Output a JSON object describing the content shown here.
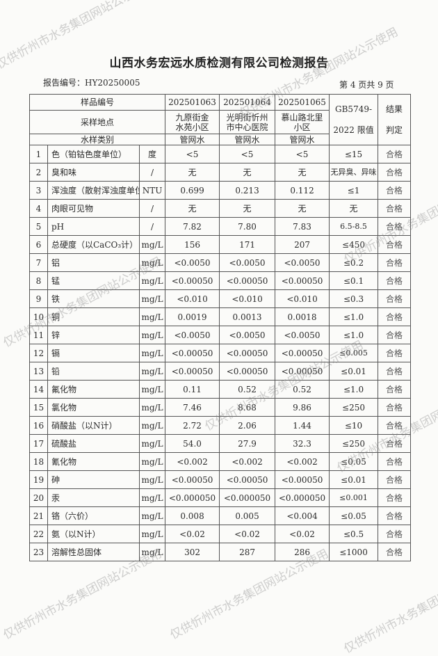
{
  "title": "山西水务宏远水质检测有限公司检测报告",
  "report_number": "报告编号：HY20250005",
  "page_number": "第 4 页共 9 页",
  "watermark": "仅供忻州市水务集团网站公示使用",
  "header": {
    "sample_no_label": "样品编号",
    "location_label": "采样地点",
    "type_label": "水样类别",
    "limit_label": "GB5749-2022 限值",
    "result_label": "结果判定",
    "samples": [
      {
        "no": "202501063",
        "location": "九原街金水苑小区",
        "type": "管网水"
      },
      {
        "no": "202501064",
        "location": "光明街忻州市中心医院",
        "type": "管网水"
      },
      {
        "no": "202501065",
        "location": "慕山路北里小区",
        "type": "管网水"
      }
    ]
  },
  "rows": [
    {
      "n": "1",
      "item": "色（铂钴色度单位）",
      "unit": "度",
      "v": [
        "<5",
        "<5",
        "<5"
      ],
      "limit": "≤15",
      "result": "合格"
    },
    {
      "n": "2",
      "item": "臭和味",
      "unit": "/",
      "v": [
        "无",
        "无",
        "无"
      ],
      "limit": "无异臭、异味",
      "result": "合格"
    },
    {
      "n": "3",
      "item": "浑浊度（散射浑浊度单位）",
      "unit": "NTU",
      "v": [
        "0.699",
        "0.213",
        "0.112"
      ],
      "limit": "≤1",
      "result": "合格"
    },
    {
      "n": "4",
      "item": "肉眼可见物",
      "unit": "/",
      "v": [
        "无",
        "无",
        "无"
      ],
      "limit": "无",
      "result": "合格"
    },
    {
      "n": "5",
      "item": "pH",
      "unit": "/",
      "v": [
        "7.82",
        "7.80",
        "7.83"
      ],
      "limit": "6.5-8.5",
      "result": "合格"
    },
    {
      "n": "6",
      "item": "总硬度（以CaCO₃计）",
      "unit": "mg/L",
      "v": [
        "156",
        "171",
        "207"
      ],
      "limit": "≤450",
      "result": "合格"
    },
    {
      "n": "7",
      "item": "铝",
      "unit": "mg/L",
      "v": [
        "<0.0050",
        "<0.0050",
        "<0.0050"
      ],
      "limit": "≤0.2",
      "result": "合格"
    },
    {
      "n": "8",
      "item": "锰",
      "unit": "mg/L",
      "v": [
        "<0.00050",
        "<0.00050",
        "<0.00050"
      ],
      "limit": "≤0.1",
      "result": "合格"
    },
    {
      "n": "9",
      "item": "铁",
      "unit": "mg/L",
      "v": [
        "<0.010",
        "<0.010",
        "<0.010"
      ],
      "limit": "≤0.3",
      "result": "合格"
    },
    {
      "n": "10",
      "item": "铜",
      "unit": "mg/L",
      "v": [
        "0.0019",
        "0.0013",
        "0.0018"
      ],
      "limit": "≤1.0",
      "result": "合格"
    },
    {
      "n": "11",
      "item": "锌",
      "unit": "mg/L",
      "v": [
        "<0.0050",
        "<0.0050",
        "<0.0050"
      ],
      "limit": "≤1.0",
      "result": "合格"
    },
    {
      "n": "12",
      "item": "镉",
      "unit": "mg/L",
      "v": [
        "<0.00050",
        "<0.00050",
        "<0.00050"
      ],
      "limit": "≤0.005",
      "result": "合格"
    },
    {
      "n": "13",
      "item": "铅",
      "unit": "mg/L",
      "v": [
        "<0.00050",
        "<0.00050",
        "<0.00050"
      ],
      "limit": "≤0.01",
      "result": "合格"
    },
    {
      "n": "14",
      "item": "氟化物",
      "unit": "mg/L",
      "v": [
        "0.11",
        "0.52",
        "0.52"
      ],
      "limit": "≤1.0",
      "result": "合格"
    },
    {
      "n": "15",
      "item": "氯化物",
      "unit": "mg/L",
      "v": [
        "7.46",
        "8.68",
        "9.86"
      ],
      "limit": "≤250",
      "result": "合格"
    },
    {
      "n": "16",
      "item": "硝酸盐（以N计）",
      "unit": "mg/L",
      "v": [
        "2.72",
        "2.06",
        "1.44"
      ],
      "limit": "≤10",
      "result": "合格"
    },
    {
      "n": "17",
      "item": "硫酸盐",
      "unit": "mg/L",
      "v": [
        "54.0",
        "27.9",
        "32.3"
      ],
      "limit": "≤250",
      "result": "合格"
    },
    {
      "n": "18",
      "item": "氰化物",
      "unit": "mg/L",
      "v": [
        "<0.002",
        "<0.002",
        "<0.002"
      ],
      "limit": "≤0.05",
      "result": "合格"
    },
    {
      "n": "19",
      "item": "砷",
      "unit": "mg/L",
      "v": [
        "<0.00050",
        "<0.00050",
        "<0.00050"
      ],
      "limit": "≤0.01",
      "result": "合格"
    },
    {
      "n": "20",
      "item": "汞",
      "unit": "mg/L",
      "v": [
        "<0.000050",
        "<0.000050",
        "<0.000050"
      ],
      "limit": "≤0.001",
      "result": "合格"
    },
    {
      "n": "21",
      "item": "铬（六价）",
      "unit": "mg/L",
      "v": [
        "0.008",
        "0.005",
        "<0.004"
      ],
      "limit": "≤0.05",
      "result": "合格"
    },
    {
      "n": "22",
      "item": "氨（以N计）",
      "unit": "mg/L",
      "v": [
        "<0.02",
        "<0.02",
        "<0.02"
      ],
      "limit": "≤0.5",
      "result": "合格"
    },
    {
      "n": "23",
      "item": "溶解性总固体",
      "unit": "mg/L",
      "v": [
        "302",
        "287",
        "286"
      ],
      "limit": "≤1000",
      "result": "合格"
    }
  ]
}
